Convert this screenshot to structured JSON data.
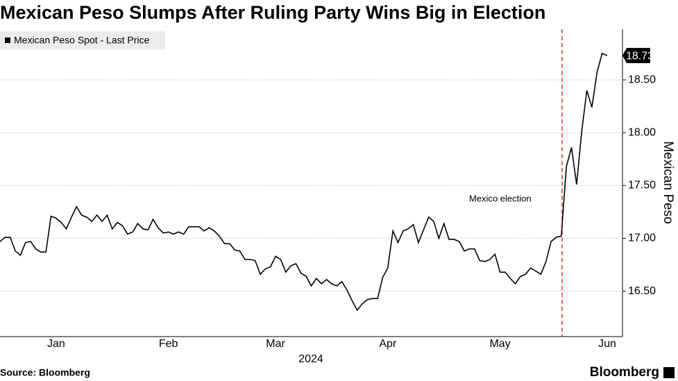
{
  "chart_data": {
    "type": "line",
    "title": "Mexican Peso Slumps After Ruling Party Wins Big in Election",
    "y_label": "Mexican Peso",
    "x_label": "2024",
    "annotation": "Mexico election",
    "categories": [
      null,
      null,
      null,
      null,
      null,
      null,
      null,
      null,
      null,
      null,
      null,
      "Jan",
      null,
      null,
      null,
      null,
      null,
      null,
      null,
      null,
      null,
      null,
      null,
      null,
      null,
      null,
      null,
      null,
      null,
      null,
      null,
      null,
      null,
      "Feb",
      null,
      null,
      null,
      null,
      null,
      null,
      null,
      null,
      null,
      null,
      null,
      null,
      null,
      null,
      null,
      null,
      null,
      null,
      null,
      null,
      "Mar",
      null,
      null,
      null,
      null,
      null,
      null,
      null,
      null,
      null,
      null,
      null,
      null,
      null,
      null,
      null,
      null,
      null,
      null,
      null,
      null,
      null,
      "Apr",
      null,
      null,
      null,
      null,
      null,
      null,
      null,
      null,
      null,
      null,
      null,
      null,
      null,
      null,
      null,
      null,
      null,
      null,
      null,
      null,
      null,
      "May",
      null,
      null,
      null,
      null,
      null,
      null,
      null,
      null,
      null,
      null,
      null,
      null,
      null,
      null,
      null,
      null,
      null,
      null,
      null,
      null,
      "Jun"
    ],
    "series": [
      {
        "name": "Mexican Peso Spot - Last Price",
        "color": "#000000",
        "values": [
          16.97,
          17.01,
          17.01,
          16.88,
          16.84,
          16.96,
          16.97,
          16.9,
          16.87,
          16.87,
          17.21,
          17.19,
          17.15,
          17.09,
          17.2,
          17.3,
          17.22,
          17.2,
          17.16,
          17.22,
          17.16,
          17.22,
          17.09,
          17.15,
          17.12,
          17.04,
          17.06,
          17.14,
          17.09,
          17.08,
          17.18,
          17.1,
          17.05,
          17.06,
          17.04,
          17.06,
          17.04,
          17.11,
          17.11,
          17.11,
          17.07,
          17.1,
          17.07,
          17.02,
          16.95,
          16.95,
          16.89,
          16.88,
          16.8,
          16.8,
          16.79,
          16.66,
          16.71,
          16.73,
          16.83,
          16.8,
          16.68,
          16.74,
          16.76,
          16.67,
          16.64,
          16.55,
          16.62,
          16.57,
          16.61,
          16.57,
          16.55,
          16.59,
          16.51,
          16.41,
          16.32,
          16.38,
          16.42,
          16.43,
          16.43,
          16.63,
          16.72,
          17.07,
          16.96,
          17.07,
          17.09,
          17.13,
          16.96,
          17.08,
          17.2,
          17.16,
          17.0,
          17.14,
          16.99,
          16.99,
          16.97,
          16.88,
          16.9,
          16.9,
          16.79,
          16.78,
          16.8,
          16.85,
          16.68,
          16.68,
          16.62,
          16.57,
          16.64,
          16.66,
          16.72,
          16.69,
          16.66,
          16.78,
          16.97,
          17.01,
          17.02,
          17.68,
          17.86,
          17.51,
          18.01,
          18.4,
          18.24,
          18.57,
          18.75,
          18.73
        ]
      }
    ],
    "ylim": [
      16.07,
      18.98
    ],
    "yticks": [
      {
        "value": 16.5,
        "label": "16.50"
      },
      {
        "value": 17,
        "label": "17.00"
      },
      {
        "value": 17.5,
        "label": "17.50"
      },
      {
        "value": 18,
        "label": "18.00"
      },
      {
        "value": 18.5,
        "label": "18.50"
      }
    ],
    "grid": true
  },
  "footer": {
    "source": "Source: Bloomberg",
    "brand": "Bloomberg"
  }
}
